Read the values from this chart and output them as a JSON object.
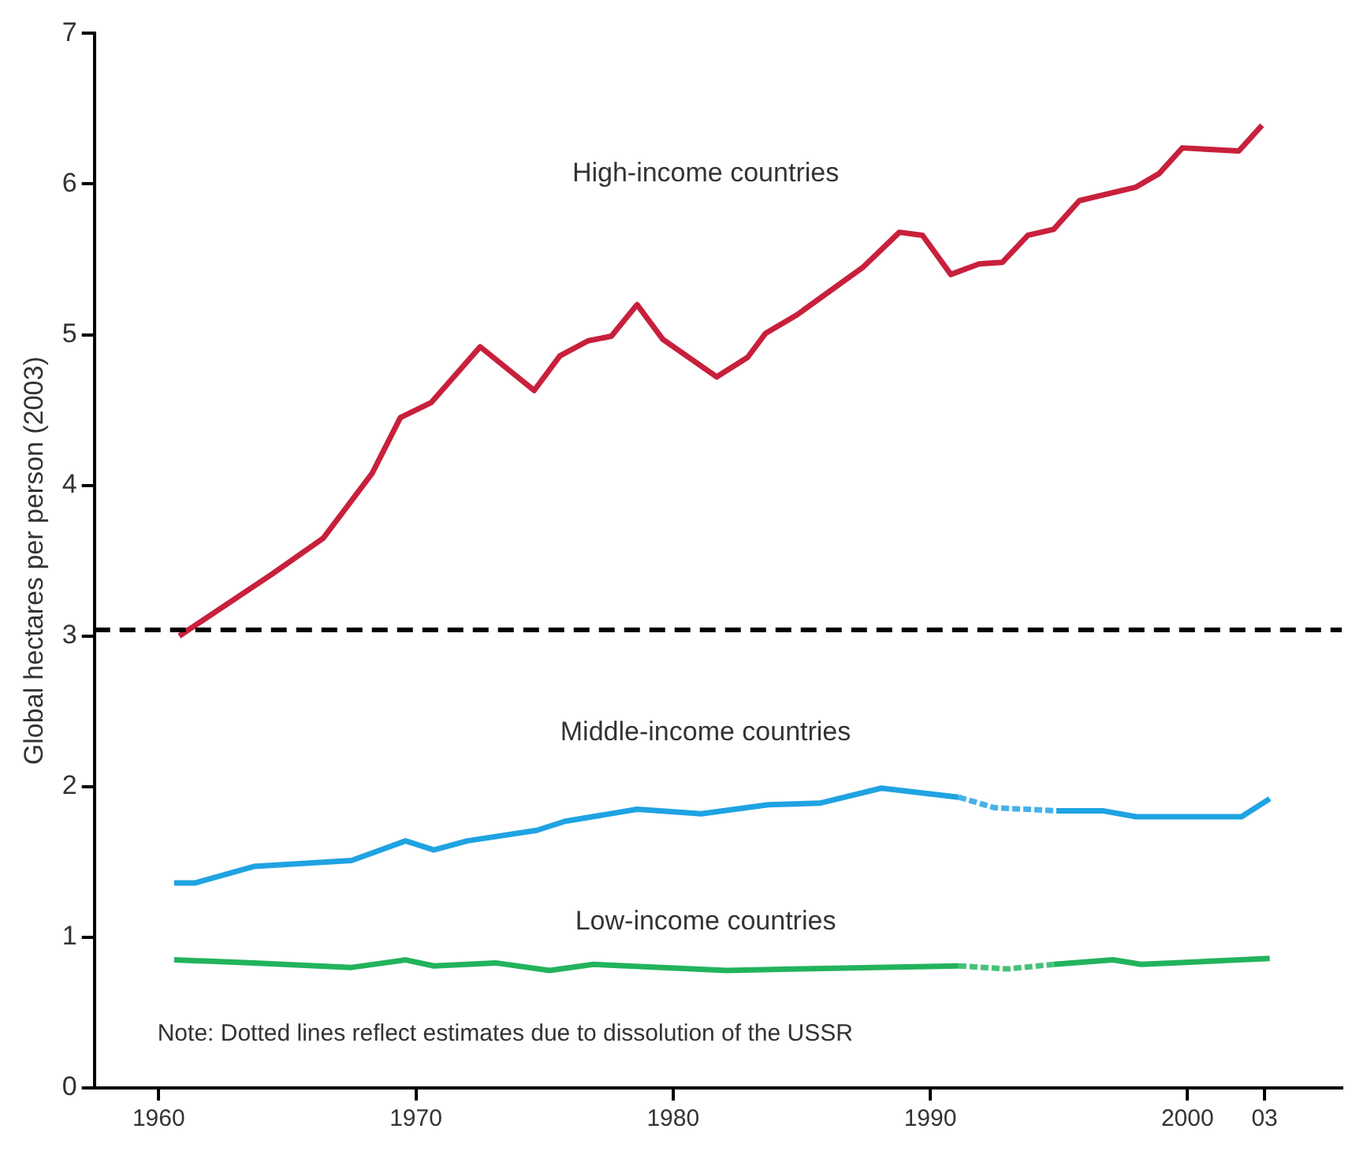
{
  "chart_data": {
    "type": "line",
    "ylabel": "Global hectares per person (2003)",
    "xlim": [
      1957.5,
      2006
    ],
    "ylim": [
      0,
      7
    ],
    "xticks": [
      1960,
      1970,
      1980,
      1990,
      2000,
      {
        "value": 2003,
        "label": "03"
      }
    ],
    "yticks": [
      0,
      1,
      2,
      3,
      4,
      5,
      6,
      7
    ],
    "grid": false,
    "legend": false,
    "marker": "none",
    "annotations": [
      "Note: Dotted lines reflect estimates due to dissolution of the USSR"
    ],
    "ref_lines": [
      {
        "axis": "y",
        "value": 3.04,
        "label": null,
        "color": "#000000",
        "line_style": "dashed"
      }
    ],
    "series": [
      {
        "name": "High-income countries",
        "color": "#c8203c",
        "line_style": "solid",
        "x": [
          1960.8,
          1964.4,
          1966.4,
          1968.3,
          1969.4,
          1970.6,
          1972.5,
          1974.6,
          1975.6,
          1976.7,
          1977.6,
          1978.6,
          1979.6,
          1981.7,
          1982.9,
          1983.6,
          1984.8,
          1987.4,
          1988.8,
          1989.7,
          1990.8,
          1991.9,
          1992.8,
          1993.8,
          1994.8,
          1995.8,
          1998.0,
          1998.9,
          1999.8,
          2002.0,
          2002.9
        ],
        "values": [
          3.0,
          3.41,
          3.65,
          4.08,
          4.45,
          4.55,
          4.92,
          4.63,
          4.86,
          4.96,
          4.99,
          5.2,
          4.97,
          4.72,
          4.85,
          5.01,
          5.13,
          5.45,
          5.68,
          5.66,
          5.4,
          5.47,
          5.48,
          5.66,
          5.7,
          5.89,
          5.98,
          6.07,
          6.24,
          6.22,
          6.39
        ]
      },
      {
        "name": "Middle-income countries",
        "color": "#1fa3e2",
        "line_style": "solid",
        "x": [
          1960.6,
          1961.4,
          1963.7,
          1967.5,
          1969.6,
          1970.7,
          1972.0,
          1974.7,
          1975.8,
          1978.6,
          1981.1,
          1983.7,
          1985.7,
          1988.1,
          1991.1,
          1993,
          1994.9,
          1996.7,
          1998.0,
          2002.1,
          2003.2
        ],
        "values": [
          1.36,
          1.36,
          1.47,
          1.51,
          1.64,
          1.58,
          1.64,
          1.71,
          1.77,
          1.85,
          1.82,
          1.88,
          1.89,
          1.99,
          1.93,
          null,
          1.84,
          1.84,
          1.8,
          1.8,
          1.92
        ]
      },
      {
        "color": "#45b2e8",
        "line_style": "dotted",
        "x": [
          1991.1,
          1992.5,
          1994.9
        ],
        "values": [
          1.93,
          1.86,
          1.84
        ]
      },
      {
        "name": "Low-income countries",
        "color": "#22b35c",
        "line_style": "solid",
        "x": [
          1960.6,
          1963.7,
          1967.5,
          1969.6,
          1970.7,
          1973.1,
          1975.2,
          1976.9,
          1982.1,
          1984.9,
          1991.1,
          1993,
          1994.8,
          1997.1,
          1998.2,
          2003.2
        ],
        "values": [
          0.85,
          0.83,
          0.8,
          0.85,
          0.81,
          0.83,
          0.78,
          0.82,
          0.78,
          0.79,
          0.81,
          null,
          0.82,
          0.85,
          0.82,
          0.86
        ]
      },
      {
        "color": "#45c277",
        "line_style": "dotted",
        "x": [
          1991.1,
          1993,
          1994.8
        ],
        "values": [
          0.81,
          0.79,
          0.82
        ]
      }
    ]
  }
}
